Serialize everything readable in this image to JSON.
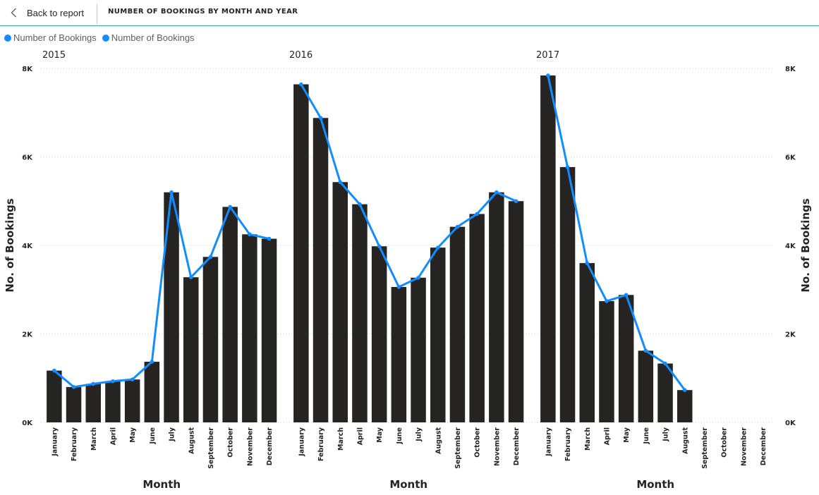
{
  "header": {
    "back_label": "Back to report",
    "title": "NUMBER OF BOOKINGS BY MONTH AND YEAR"
  },
  "colors": {
    "bar": "#252423",
    "line": "#118dff",
    "header_rule": "#3aa6a0"
  },
  "icons": {
    "back": "chevron-left-icon"
  },
  "chart_data": {
    "type": "bar",
    "legend": [
      "Number of Bookings",
      "Number of Bookings"
    ],
    "legend_position": "top-left",
    "ylabel_left": "No. of Bookings",
    "ylabel_right": "No. of Bookings",
    "xlabel": "Month",
    "yticks": [
      "0K",
      "2K",
      "4K",
      "6K",
      "8K"
    ],
    "ylim": [
      0,
      8000
    ],
    "grid": true,
    "categories": [
      "January",
      "February",
      "March",
      "April",
      "May",
      "June",
      "July",
      "August",
      "September",
      "October",
      "November",
      "December"
    ],
    "panels": [
      {
        "year": "2015",
        "values": [
          1170,
          800,
          870,
          930,
          970,
          1370,
          5200,
          3280,
          3740,
          4870,
          4250,
          4150
        ]
      },
      {
        "year": "2016",
        "values": [
          7640,
          6880,
          5430,
          4930,
          3980,
          3060,
          3270,
          3950,
          4420,
          4710,
          5200,
          5000
        ]
      },
      {
        "year": "2017",
        "values": [
          7840,
          5770,
          3600,
          2740,
          2880,
          1620,
          1330,
          730,
          null,
          null,
          null,
          null
        ]
      }
    ]
  }
}
